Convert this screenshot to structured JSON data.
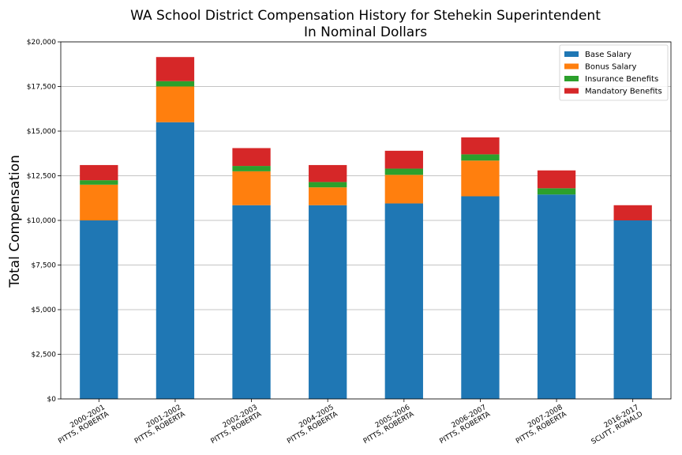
{
  "chart_data": {
    "type": "bar",
    "stacked": true,
    "title": "WA School District Compensation History for Stehekin Superintendent",
    "subtitle": "In Nominal Dollars",
    "xlabel": "",
    "ylabel": "Total Compensation",
    "ylim": [
      0,
      20000
    ],
    "yticks": [
      "$0",
      "$2,500",
      "$5,000",
      "$7,500",
      "$10,000",
      "$12,500",
      "$15,000",
      "$17,500",
      "$20,000"
    ],
    "ytick_values": [
      0,
      2500,
      5000,
      7500,
      10000,
      12500,
      15000,
      17500,
      20000
    ],
    "grid": "horizontal",
    "legend_position": "top-right",
    "categories": [
      [
        "2000-2001",
        "PITTS, ROBERTA"
      ],
      [
        "2001-2002",
        "PITTS, ROBERTA"
      ],
      [
        "2002-2003",
        "PITTS, ROBERTA"
      ],
      [
        "2004-2005",
        "PITTS, ROBERTA"
      ],
      [
        "2005-2006",
        "PITTS, ROBERTA"
      ],
      [
        "2006-2007",
        "PITTS, ROBERTA"
      ],
      [
        "2007-2008",
        "PITTS, ROBERTA"
      ],
      [
        "2016-2017",
        "SCUTT, RONALD"
      ]
    ],
    "series": [
      {
        "name": "Base Salary",
        "color": "#1f77b4",
        "values": [
          10000,
          15500,
          10850,
          10850,
          10950,
          11350,
          11450,
          10000
        ]
      },
      {
        "name": "Bonus Salary",
        "color": "#ff7f0e",
        "values": [
          2000,
          2000,
          1900,
          1000,
          1600,
          2000,
          0,
          0
        ]
      },
      {
        "name": "Insurance Benefits",
        "color": "#2ca02c",
        "values": [
          250,
          300,
          300,
          300,
          350,
          350,
          350,
          0
        ]
      },
      {
        "name": "Mandatory Benefits",
        "color": "#d62728",
        "values": [
          850,
          1350,
          1000,
          950,
          1000,
          950,
          1000,
          850
        ]
      }
    ]
  }
}
